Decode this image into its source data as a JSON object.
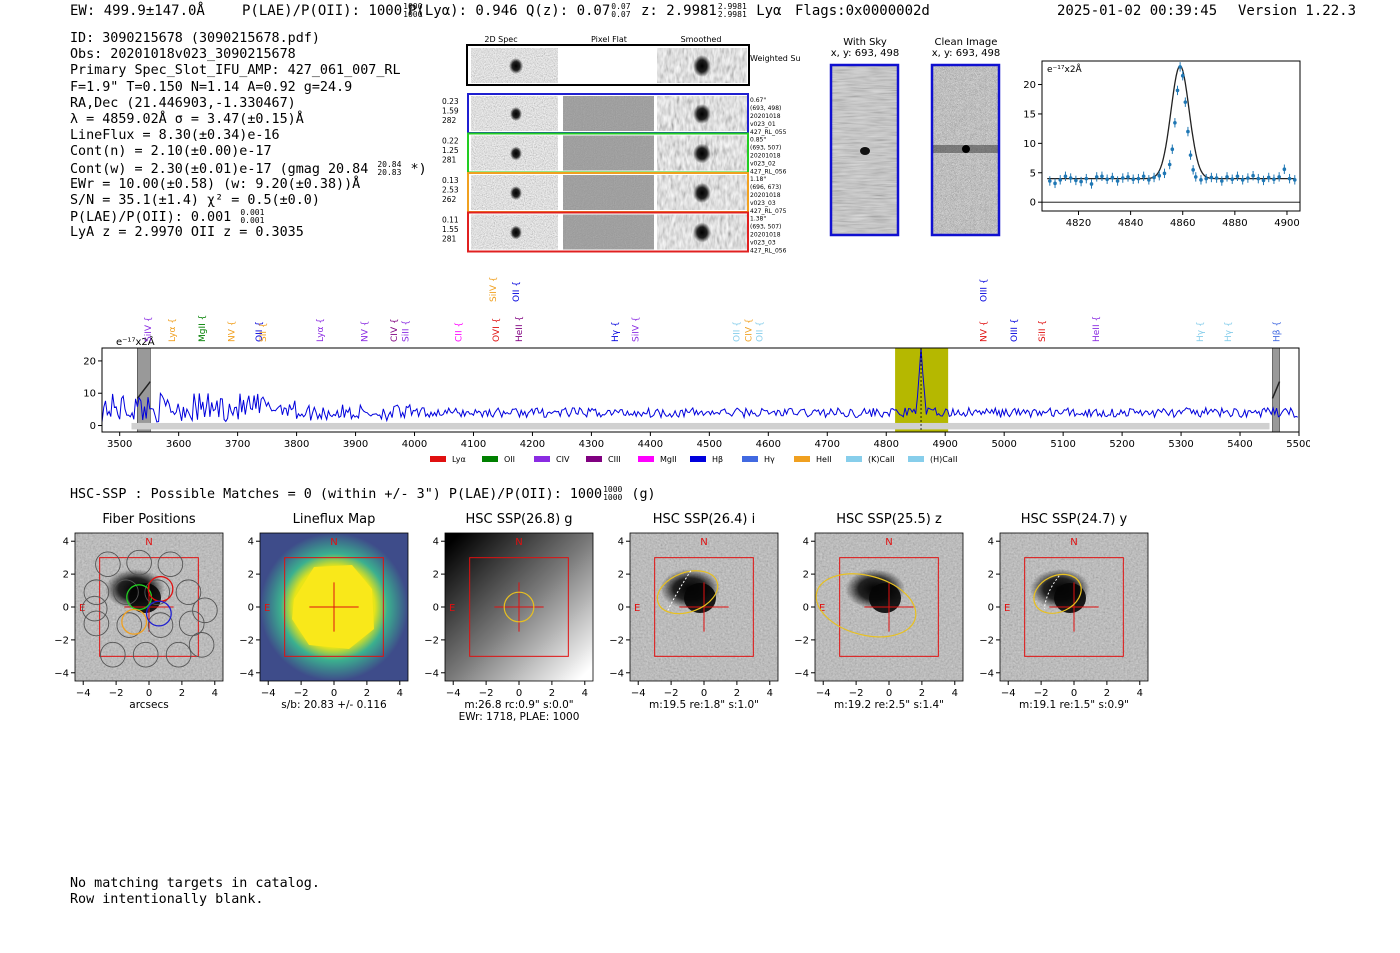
{
  "header": {
    "ew": "EW: 499.9±147.0Å",
    "plae_label": "P(LAE)/P(OII): 1000",
    "plae_hi": "1000",
    "plae_lo": "1000",
    "plya": "P(Lyα): 0.946",
    "qz_label": "Q(z): 0.07",
    "qz_hi": "0.07",
    "qz_lo": "0.07",
    "z_label": "z: 2.9981",
    "z_hi": "2.9981",
    "z_lo": "2.9981",
    "z_line": "Lyα",
    "flags": "Flags:0x0000002d",
    "timestamp": "2025-01-02 00:39:45",
    "version": "Version 1.22.3"
  },
  "info": {
    "id": "ID: 3090215678 (3090215678.pdf)",
    "obs": "Obs: 20201018v023_3090215678",
    "primary": "Primary Spec_Slot_IFU_AMP: 427_061_007_RL",
    "fwhm": "F=1.9\"  T=0.150  N=1.14  A=0.92  g=24.9",
    "radec": "RA,Dec (21.446903,-1.330467)",
    "lambda": "λ = 4859.02Å  σ = 3.47(±0.15)Å",
    "lineflux": "LineFlux = 8.30(±0.34)e-16",
    "contn": "Cont(n) = 2.10(±0.00)e-17",
    "contw": "Cont(w) = 2.30(±0.01)e-17 (gmag 20.84",
    "gmag_hi": "20.84",
    "gmag_lo": "20.83",
    "contw_end": "*)",
    "ewr": "EWr = 10.00(±0.58) (w: 9.20(±0.38))Å",
    "sn": "S/N = 35.1(±1.4)  χ² = 0.5(±0.0)",
    "plae2": "P(LAE)/P(OII): 0.001",
    "plae2_hi": "0.001",
    "plae2_lo": "0.001",
    "lyaz": "LyA z = 2.9970  OII z = 0.3035"
  },
  "cutouts": {
    "col_2d": "2D Spec",
    "col_flat": "Pixel Flat",
    "col_smooth": "Smoothed",
    "weighted_sum": "Weighted Sum",
    "rows": [
      {
        "left": [
          "0.23",
          "1.59",
          "282"
        ],
        "right": [
          "0.67\"",
          "(693, 498)",
          "20201018",
          "v023_01",
          "427_RL_055"
        ],
        "color": "#1f1fd0"
      },
      {
        "left": [
          "0.22",
          "1.25",
          "281"
        ],
        "right": [
          "0.85\"",
          "(693, 507)",
          "20201018",
          "v023_02",
          "427_RL_056"
        ],
        "color": "#22cc22"
      },
      {
        "left": [
          "0.13",
          "2.53",
          "262"
        ],
        "right": [
          "1.18\"",
          "(696, 673)",
          "20201018",
          "v023_03",
          "427_RL_075"
        ],
        "color": "#f0a020"
      },
      {
        "left": [
          "0.11",
          "1.55",
          "281"
        ],
        "right": [
          "1.38\"",
          "(693, 507)",
          "20201018",
          "v023_03",
          "427_RL_056"
        ],
        "color": "#e02020"
      }
    ]
  },
  "sky": {
    "with_sky": "With Sky",
    "with_sky_xy": "x, y: 693, 498",
    "clean": "Clean Image",
    "clean_xy": "x, y: 693, 498"
  },
  "colors": {
    "blue": "#0000dd",
    "fit": "#1f77b4",
    "red": "#e01010",
    "yellow": "#e8c020",
    "olive": "#b5b800"
  },
  "chart_data": [
    {
      "type": "scatter",
      "title": "",
      "unit_label": "e⁻¹⁷x2Å",
      "xlim": [
        4806,
        4905
      ],
      "ylim": [
        -1.5,
        24
      ],
      "xticks": [
        4820,
        4840,
        4860,
        4880,
        4900
      ],
      "yticks": [
        0,
        5,
        10,
        15,
        20
      ],
      "x": [
        4809,
        4811,
        4813,
        4815,
        4817,
        4819,
        4821,
        4823,
        4825,
        4827,
        4829,
        4831,
        4833,
        4835,
        4837,
        4839,
        4841,
        4843,
        4845,
        4847,
        4849,
        4851,
        4853,
        4855,
        4856,
        4857,
        4858,
        4859,
        4860,
        4861,
        4862,
        4863,
        4864,
        4865,
        4867,
        4869,
        4871,
        4873,
        4875,
        4877,
        4879,
        4881,
        4883,
        4885,
        4887,
        4889,
        4891,
        4893,
        4895,
        4897,
        4899,
        4901,
        4903
      ],
      "y": [
        3.6,
        3.2,
        3.8,
        4.4,
        4.1,
        3.7,
        3.5,
        4.0,
        3.1,
        4.3,
        4.4,
        3.9,
        4.2,
        3.6,
        4.1,
        4.3,
        3.9,
        4.0,
        4.4,
        3.8,
        4.2,
        4.5,
        4.9,
        6.4,
        9.0,
        13.5,
        19.0,
        23.0,
        21.5,
        17.0,
        12.0,
        8.0,
        5.5,
        4.3,
        3.8,
        4.0,
        4.2,
        4.1,
        3.6,
        4.3,
        3.9,
        4.4,
        3.8,
        4.1,
        4.5,
        4.0,
        3.7,
        4.2,
        3.9,
        4.3,
        5.6,
        4.0,
        3.8
      ],
      "fit_center": 4859.0,
      "fit_sigma": 3.47,
      "fit_amp": 19.2,
      "fit_cont": 4.0
    },
    {
      "type": "line",
      "title": "",
      "unit_label": "e⁻¹⁷x2Å",
      "xlim": [
        3470,
        5500
      ],
      "ylim": [
        -2,
        24
      ],
      "xticks": [
        3500,
        3600,
        3700,
        3800,
        3900,
        4000,
        4100,
        4200,
        4300,
        4400,
        4500,
        4600,
        4700,
        4800,
        4900,
        5000,
        5100,
        5200,
        5300,
        5400,
        5500
      ],
      "yticks": [
        0,
        10,
        20
      ],
      "line_center": 4859,
      "highlight": [
        4815,
        4905
      ],
      "masked": [
        [
          3530,
          3552
        ],
        [
          5455,
          5467
        ]
      ],
      "line_labels": [
        {
          "x": 3548,
          "text": "SiIV",
          "color": "#8a2be2"
        },
        {
          "x": 3589,
          "text": "Lyα",
          "color": "#f0a020"
        },
        {
          "x": 3640,
          "text": "MgII",
          "color": "#008000"
        },
        {
          "x": 3690,
          "text": "NV",
          "color": "#f0a020"
        },
        {
          "x": 3736,
          "text": "OII",
          "color": "#0000dd"
        },
        {
          "x": 3743,
          "text": "SII",
          "color": "#f0a020"
        },
        {
          "x": 3840,
          "text": "Lyα",
          "color": "#8a2be2"
        },
        {
          "x": 3915,
          "text": "NV",
          "color": "#8a2be2"
        },
        {
          "x": 3965,
          "text": "CIV",
          "color": "#800080"
        },
        {
          "x": 3985,
          "text": "SiII",
          "color": "#8a2be2"
        },
        {
          "x": 4075,
          "text": "CII",
          "color": "#ff00ff"
        },
        {
          "x": 4133,
          "text": "SiIV",
          "color": "#f0a020",
          "upper": true
        },
        {
          "x": 4172,
          "text": "OII",
          "color": "#0000dd",
          "upper": true
        },
        {
          "x": 4138,
          "text": "OVI",
          "color": "#e01010"
        },
        {
          "x": 4177,
          "text": "HeII",
          "color": "#800080"
        },
        {
          "x": 4340,
          "text": "Hγ",
          "color": "#0000dd"
        },
        {
          "x": 4375,
          "text": "SiIV",
          "color": "#8a2be2"
        },
        {
          "x": 4546,
          "text": "OII",
          "color": "#87ceeb"
        },
        {
          "x": 4566,
          "text": "CIV",
          "color": "#f0a020"
        },
        {
          "x": 4585,
          "text": "OII",
          "color": "#87ceeb"
        },
        {
          "x": 4965,
          "text": "OIII",
          "color": "#0000dd",
          "upper": true
        },
        {
          "x": 4965,
          "text": "NV",
          "color": "#e01010"
        },
        {
          "x": 5017,
          "text": "OIII",
          "color": "#0000dd"
        },
        {
          "x": 5064,
          "text": "SiII",
          "color": "#e01010"
        },
        {
          "x": 5156,
          "text": "HeII",
          "color": "#8a2be2"
        },
        {
          "x": 5332,
          "text": "Hγ",
          "color": "#87ceeb"
        },
        {
          "x": 5380,
          "text": "Hγ",
          "color": "#87ceeb"
        },
        {
          "x": 5462,
          "text": "Hβ",
          "color": "#4169e1"
        }
      ],
      "legend": [
        {
          "text": "Lyα",
          "color": "#e01010"
        },
        {
          "text": "OII",
          "color": "#008000"
        },
        {
          "text": "CIV",
          "color": "#8a2be2"
        },
        {
          "text": "CIII",
          "color": "#800080"
        },
        {
          "text": "MgII",
          "color": "#ff00ff"
        },
        {
          "text": "Hβ",
          "color": "#0000dd"
        },
        {
          "text": "Hγ",
          "color": "#4169e1"
        },
        {
          "text": "HeII",
          "color": "#f0a020"
        },
        {
          "text": "(K)CaII",
          "color": "#87ceeb"
        },
        {
          "text": "(H)CaII",
          "color": "#87ceeb"
        }
      ]
    }
  ],
  "hsc": {
    "summary": "HSC-SSP : Possible Matches = 0 (within +/- 3\")  P(LAE)/P(OII): 1000",
    "frac_hi": "1000",
    "frac_lo": "1000",
    "filter": "(g)",
    "ticks": [
      "4",
      "2",
      "0",
      "−2",
      "−4"
    ],
    "xticks": [
      "−4",
      "−2",
      "0",
      "2",
      "4"
    ],
    "north": "N",
    "east": "E",
    "panels": [
      {
        "title": "Fiber Positions",
        "caption": [
          "arcsecs"
        ]
      },
      {
        "title": "Lineflux Map",
        "caption": [
          "s/b: 20.83 +/- 0.116"
        ]
      },
      {
        "title": "HSC SSP(26.8) g",
        "caption": [
          "m:26.8 rc:0.9\"  s:0.0\"",
          "EWr: 1718, PLAE: 1000"
        ]
      },
      {
        "title": "HSC SSP(26.4) i",
        "caption": [
          "m:19.5  re:1.8\"  s:1.0\""
        ]
      },
      {
        "title": "HSC SSP(25.5) z",
        "caption": [
          "m:19.2  re:2.5\"  s:1.4\""
        ]
      },
      {
        "title": "HSC SSP(24.7) y",
        "caption": [
          "m:19.1  re:1.5\"  s:0.9\""
        ]
      }
    ]
  },
  "footer": {
    "line1": "No matching targets in catalog.",
    "line2": "Row intentionally blank."
  }
}
